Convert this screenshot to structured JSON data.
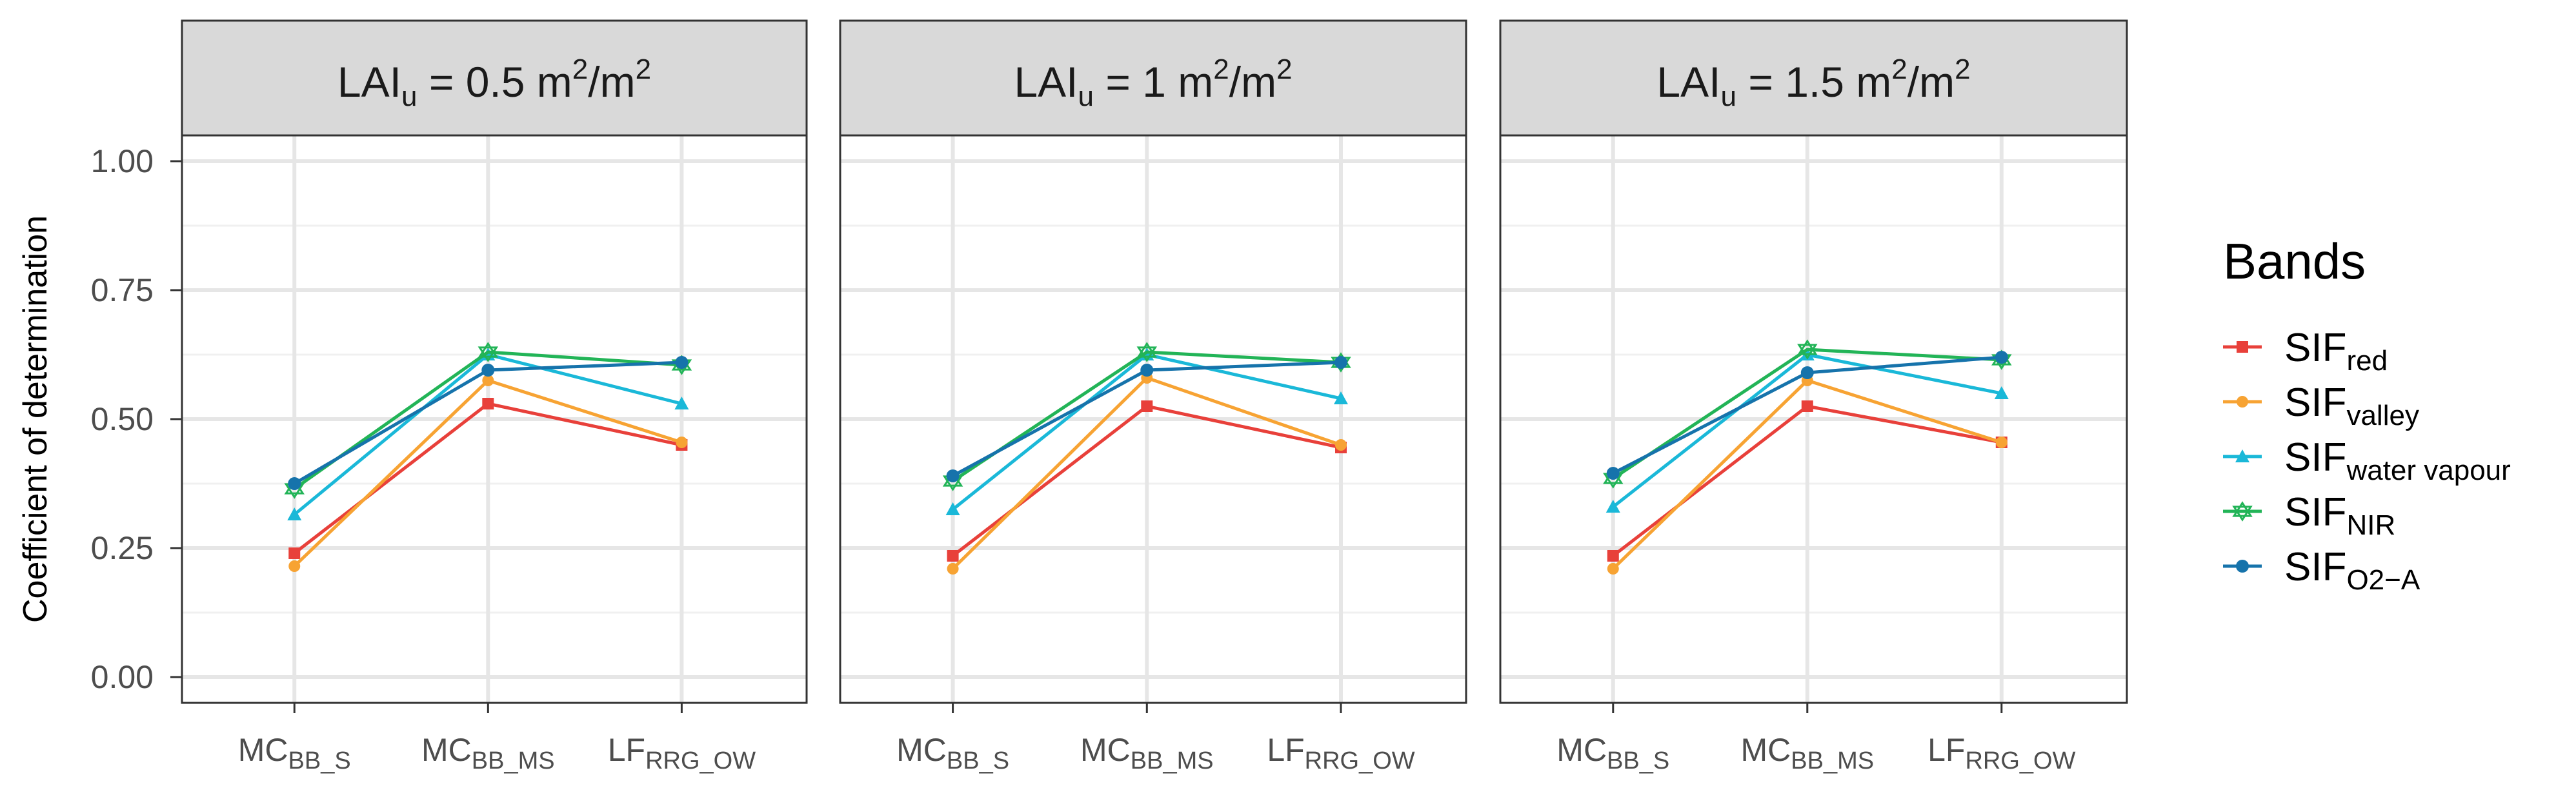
{
  "chart_data": {
    "type": "line",
    "facet_by": "LAI_u",
    "ylabel": "Coefficient of determination",
    "xlabel": "",
    "ylim": [
      0,
      1
    ],
    "y_ticks": [
      "0.00",
      "0.25",
      "0.50",
      "0.75",
      "1.00"
    ],
    "grid": true,
    "categories": [
      {
        "main": "MC",
        "sub": "BB_S"
      },
      {
        "main": "MC",
        "sub": "BB_MS"
      },
      {
        "main": "LF",
        "sub": "RRG_OW"
      }
    ],
    "legend": {
      "title": "Bands",
      "position": "right",
      "entries": [
        {
          "key": "red",
          "main": "SIF",
          "sub": "red",
          "color": "#e8403a",
          "marker": "square"
        },
        {
          "key": "valley",
          "main": "SIF",
          "sub": "valley",
          "color": "#f7a333",
          "marker": "circle"
        },
        {
          "key": "water",
          "main": "SIF",
          "sub": "water vapour",
          "color": "#1ab8d8",
          "marker": "triangle"
        },
        {
          "key": "nir",
          "main": "SIF",
          "sub": "NIR",
          "color": "#22b457",
          "marker": "star"
        },
        {
          "key": "o2a",
          "main": "SIF",
          "sub": "O2−A",
          "color": "#1673ab",
          "marker": "dot"
        }
      ]
    },
    "facets": [
      {
        "strip": {
          "prefix": "LAI",
          "sub": "u",
          "eq": " = ",
          "value": "0.5",
          "unit": " m",
          "exp1": "2",
          "slash": "/m",
          "exp2": "2"
        },
        "series": {
          "red": [
            0.24,
            0.53,
            0.45
          ],
          "valley": [
            0.215,
            0.575,
            0.455
          ],
          "water": [
            0.315,
            0.625,
            0.53
          ],
          "nir": [
            0.365,
            0.63,
            0.605
          ],
          "o2a": [
            0.375,
            0.595,
            0.61
          ]
        }
      },
      {
        "strip": {
          "prefix": "LAI",
          "sub": "u",
          "eq": " = ",
          "value": "1",
          "unit": " m",
          "exp1": "2",
          "slash": "/m",
          "exp2": "2"
        },
        "series": {
          "red": [
            0.235,
            0.525,
            0.445
          ],
          "valley": [
            0.21,
            0.58,
            0.45
          ],
          "water": [
            0.325,
            0.625,
            0.54
          ],
          "nir": [
            0.38,
            0.63,
            0.61
          ],
          "o2a": [
            0.39,
            0.595,
            0.61
          ]
        }
      },
      {
        "strip": {
          "prefix": "LAI",
          "sub": "u",
          "eq": " = ",
          "value": "1.5",
          "unit": " m",
          "exp1": "2",
          "slash": "/m",
          "exp2": "2"
        },
        "series": {
          "red": [
            0.235,
            0.525,
            0.455
          ],
          "valley": [
            0.21,
            0.575,
            0.455
          ],
          "water": [
            0.33,
            0.625,
            0.55
          ],
          "nir": [
            0.385,
            0.635,
            0.615
          ],
          "o2a": [
            0.395,
            0.59,
            0.62
          ]
        }
      }
    ]
  }
}
